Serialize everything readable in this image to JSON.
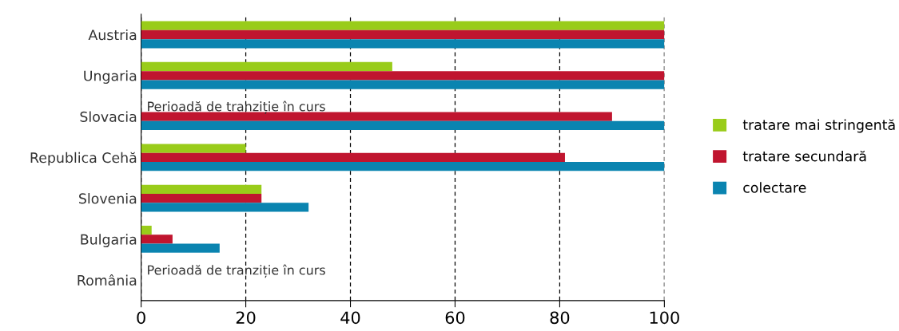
{
  "chart_data": {
    "type": "bar",
    "orientation": "horizontal",
    "categories": [
      "Austria",
      "Ungaria",
      "Slovacia",
      "Republica Cehă",
      "Slovenia",
      "Bulgaria",
      "România"
    ],
    "series": [
      {
        "name": "tratare mai stringentă",
        "color": "#99cc1a",
        "values": [
          100,
          48,
          null,
          20,
          23,
          2,
          null
        ]
      },
      {
        "name": "tratare secundară",
        "color": "#c0152f",
        "values": [
          100,
          100,
          90,
          81,
          23,
          6,
          null
        ]
      },
      {
        "name": "colectare",
        "color": "#0a84b0",
        "values": [
          100,
          100,
          100,
          100,
          32,
          15,
          null
        ]
      }
    ],
    "xlim": [
      0,
      100
    ],
    "xticks": [
      0,
      20,
      40,
      60,
      80,
      100
    ],
    "grid": "x",
    "legend": "right",
    "annotations": [
      "Perioadă de tranziție în curs",
      "Perioadă de tranziție în curs"
    ]
  }
}
